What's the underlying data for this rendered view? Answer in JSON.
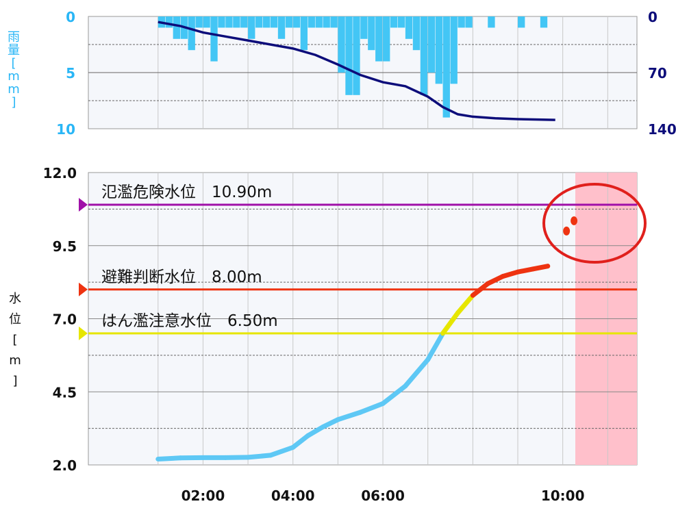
{
  "chart_data": [
    {
      "type": "bar",
      "ylabel": "雨量[mm]",
      "left_axis": {
        "ticks": [
          "0",
          "5",
          "10"
        ],
        "range": [
          0,
          10
        ],
        "color": "#29b6f6"
      },
      "right_axis": {
        "ticks": [
          "0",
          "70",
          "140"
        ],
        "range": [
          0,
          140
        ],
        "color": "#0d0d7a"
      },
      "bars": [
        {
          "x": "01:00",
          "y": 1
        },
        {
          "x": "01:10",
          "y": 1
        },
        {
          "x": "01:20",
          "y": 2
        },
        {
          "x": "01:30",
          "y": 2
        },
        {
          "x": "01:40",
          "y": 3
        },
        {
          "x": "01:50",
          "y": 1
        },
        {
          "x": "02:00",
          "y": 1
        },
        {
          "x": "02:10",
          "y": 4
        },
        {
          "x": "02:20",
          "y": 1
        },
        {
          "x": "02:30",
          "y": 1
        },
        {
          "x": "02:40",
          "y": 1
        },
        {
          "x": "02:50",
          "y": 1
        },
        {
          "x": "03:00",
          "y": 2
        },
        {
          "x": "03:10",
          "y": 1
        },
        {
          "x": "03:20",
          "y": 1
        },
        {
          "x": "03:30",
          "y": 1
        },
        {
          "x": "03:40",
          "y": 2
        },
        {
          "x": "03:50",
          "y": 1
        },
        {
          "x": "04:00",
          "y": 1
        },
        {
          "x": "04:10",
          "y": 3
        },
        {
          "x": "04:20",
          "y": 1
        },
        {
          "x": "04:30",
          "y": 1
        },
        {
          "x": "04:40",
          "y": 1
        },
        {
          "x": "04:50",
          "y": 1
        },
        {
          "x": "05:00",
          "y": 5
        },
        {
          "x": "05:10",
          "y": 7
        },
        {
          "x": "05:20",
          "y": 7
        },
        {
          "x": "05:30",
          "y": 2
        },
        {
          "x": "05:40",
          "y": 3
        },
        {
          "x": "05:50",
          "y": 4
        },
        {
          "x": "06:00",
          "y": 4
        },
        {
          "x": "06:10",
          "y": 1
        },
        {
          "x": "06:20",
          "y": 1
        },
        {
          "x": "06:30",
          "y": 2
        },
        {
          "x": "06:40",
          "y": 3
        },
        {
          "x": "06:50",
          "y": 7
        },
        {
          "x": "07:00",
          "y": 5
        },
        {
          "x": "07:10",
          "y": 6
        },
        {
          "x": "07:20",
          "y": 9
        },
        {
          "x": "07:30",
          "y": 6
        },
        {
          "x": "07:40",
          "y": 1
        },
        {
          "x": "07:50",
          "y": 1
        },
        {
          "x": "08:20",
          "y": 1
        },
        {
          "x": "09:00",
          "y": 1
        },
        {
          "x": "09:30",
          "y": 1
        }
      ],
      "cumulative_series": [
        {
          "x": "01:00",
          "y": 7
        },
        {
          "x": "01:30",
          "y": 12
        },
        {
          "x": "02:00",
          "y": 20
        },
        {
          "x": "02:30",
          "y": 25
        },
        {
          "x": "03:00",
          "y": 30
        },
        {
          "x": "03:30",
          "y": 35
        },
        {
          "x": "04:00",
          "y": 40
        },
        {
          "x": "04:30",
          "y": 48
        },
        {
          "x": "05:00",
          "y": 60
        },
        {
          "x": "05:30",
          "y": 73
        },
        {
          "x": "06:00",
          "y": 82
        },
        {
          "x": "06:30",
          "y": 87
        },
        {
          "x": "07:00",
          "y": 100
        },
        {
          "x": "07:20",
          "y": 113
        },
        {
          "x": "07:40",
          "y": 122
        },
        {
          "x": "08:00",
          "y": 125
        },
        {
          "x": "08:30",
          "y": 127
        },
        {
          "x": "09:00",
          "y": 128
        },
        {
          "x": "09:50",
          "y": 129
        }
      ]
    },
    {
      "type": "line",
      "ylabel": "水位[m]",
      "ylim": [
        2.0,
        12.0
      ],
      "yticks": [
        "12.0",
        "9.5",
        "7.0",
        "4.5",
        "2.0"
      ],
      "xticks": [
        "02:00",
        "04:00",
        "06:00",
        "10:00"
      ],
      "thresholds": [
        {
          "label": "氾濫危険水位　10.90m",
          "value": 10.9,
          "color": "#a010a8"
        },
        {
          "label": "避難判断水位　8.00m",
          "value": 8.0,
          "color": "#ee3311"
        },
        {
          "label": "はん濫注意水位　6.50m",
          "value": 6.5,
          "color": "#e6e600"
        }
      ],
      "series": [
        {
          "x": "01:00",
          "y": 2.2
        },
        {
          "x": "01:30",
          "y": 2.24
        },
        {
          "x": "02:00",
          "y": 2.25
        },
        {
          "x": "02:30",
          "y": 2.25
        },
        {
          "x": "03:00",
          "y": 2.26
        },
        {
          "x": "03:30",
          "y": 2.33
        },
        {
          "x": "04:00",
          "y": 2.6
        },
        {
          "x": "04:20",
          "y": 3.0
        },
        {
          "x": "04:40",
          "y": 3.3
        },
        {
          "x": "05:00",
          "y": 3.55
        },
        {
          "x": "05:30",
          "y": 3.8
        },
        {
          "x": "06:00",
          "y": 4.1
        },
        {
          "x": "06:30",
          "y": 4.7
        },
        {
          "x": "07:00",
          "y": 5.6
        },
        {
          "x": "07:20",
          "y": 6.5
        },
        {
          "x": "07:40",
          "y": 7.2
        },
        {
          "x": "08:00",
          "y": 7.8
        },
        {
          "x": "08:20",
          "y": 8.2
        },
        {
          "x": "08:40",
          "y": 8.45
        },
        {
          "x": "09:00",
          "y": 8.6
        },
        {
          "x": "09:20",
          "y": 8.7
        },
        {
          "x": "09:40",
          "y": 8.8
        }
      ],
      "forecast_points": [
        {
          "x": "10:05",
          "y": 10.0
        },
        {
          "x": "10:15",
          "y": 10.35
        }
      ],
      "series_colors": {
        "normal": "#5ec8f5",
        "caution": "#e6e600",
        "warning": "#ee3311"
      },
      "forecast_band_color": "#ffc0cb"
    }
  ]
}
